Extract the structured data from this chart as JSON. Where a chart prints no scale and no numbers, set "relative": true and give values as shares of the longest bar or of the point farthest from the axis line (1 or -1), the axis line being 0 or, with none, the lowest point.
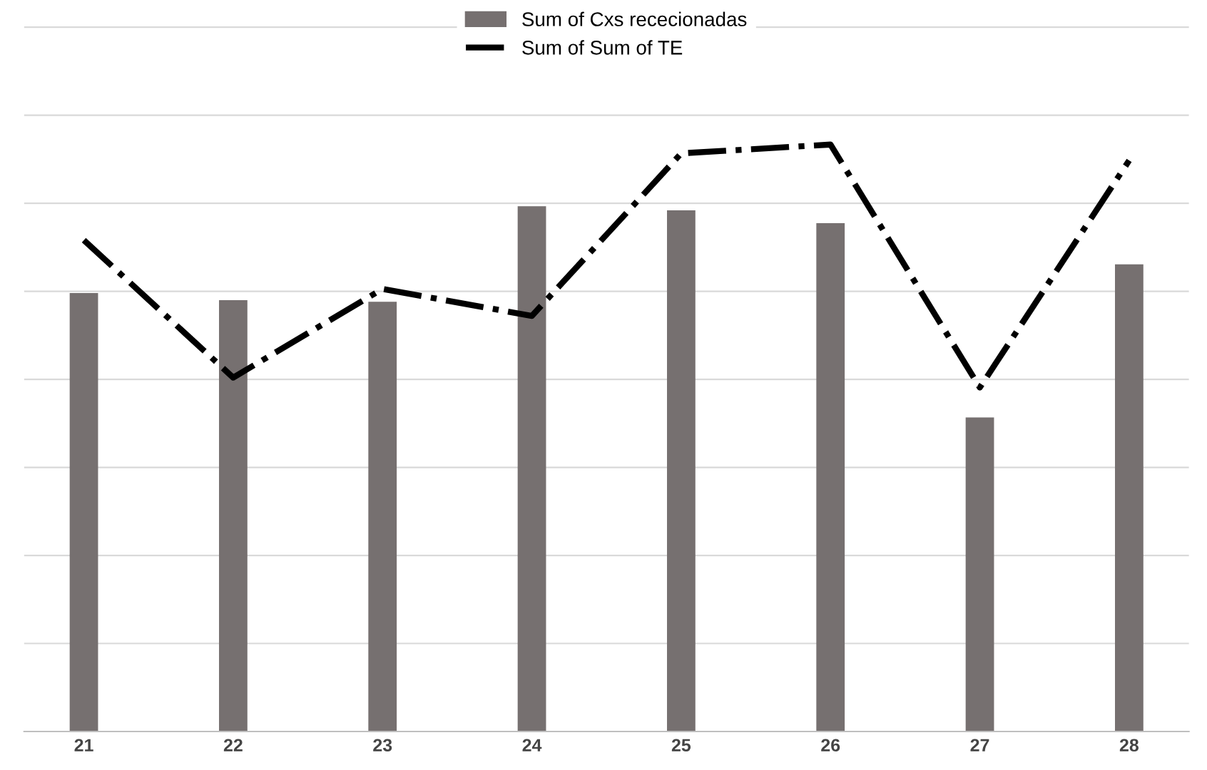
{
  "chart_data": {
    "type": "bar",
    "relative": true,
    "categories": [
      "21",
      "22",
      "23",
      "24",
      "25",
      "26",
      "27",
      "28"
    ],
    "series": [
      {
        "name": "Sum of Cxs rececionadas",
        "color": "#767070",
        "values": [
          0.747,
          0.735,
          0.732,
          0.895,
          0.888,
          0.866,
          0.535,
          0.796
        ]
      },
      {
        "name": "Sum of Sum of TE",
        "type": "line",
        "color": "#000000",
        "line_style": "dashdot",
        "marker": "none",
        "values": [
          0.837,
          0.603,
          0.754,
          0.708,
          0.985,
          1.0,
          0.586,
          0.973
        ]
      }
    ],
    "grid": "y",
    "legend": "top"
  }
}
